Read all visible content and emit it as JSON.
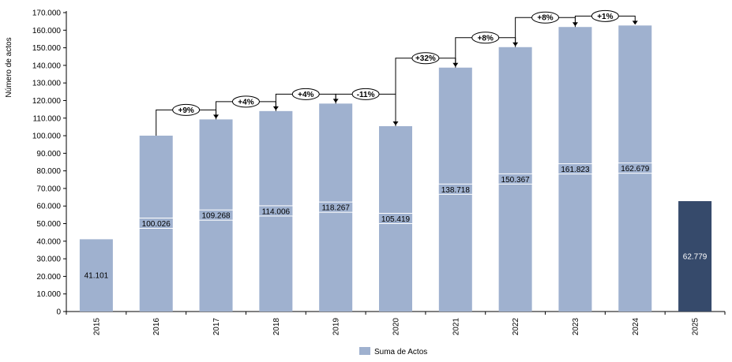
{
  "chart_data": {
    "type": "bar",
    "categories": [
      "2015",
      "2016",
      "2017",
      "2018",
      "2019",
      "2020",
      "2021",
      "2022",
      "2023",
      "2024",
      "2025"
    ],
    "series": [
      {
        "name": "Suma de Actos",
        "values": [
          41101,
          100026,
          109268,
          114006,
          118267,
          105419,
          138718,
          150367,
          161823,
          162679,
          62779
        ]
      }
    ],
    "data_labels": [
      "41.101",
      "100.026",
      "109.268",
      "114.006",
      "118.267",
      "105.419",
      "138.718",
      "150.367",
      "161.823",
      "162.679",
      "62.779"
    ],
    "ylabel": "Número de actos",
    "xlabel": "",
    "ylim": [
      0,
      170000
    ],
    "yticks": [
      {
        "value": 0,
        "label": "0"
      },
      {
        "value": 10000,
        "label": "10.000"
      },
      {
        "value": 20000,
        "label": "20.000"
      },
      {
        "value": 30000,
        "label": "30.000"
      },
      {
        "value": 40000,
        "label": "40.000"
      },
      {
        "value": 50000,
        "label": "50.000"
      },
      {
        "value": 60000,
        "label": "60.000"
      },
      {
        "value": 70000,
        "label": "70.000"
      },
      {
        "value": 80000,
        "label": "80.000"
      },
      {
        "value": 90000,
        "label": "90.000"
      },
      {
        "value": 100000,
        "label": "100.000"
      },
      {
        "value": 110000,
        "label": "110.000"
      },
      {
        "value": 120000,
        "label": "120.000"
      },
      {
        "value": 130000,
        "label": "130.000"
      },
      {
        "value": 140000,
        "label": "140.000"
      },
      {
        "value": 150000,
        "label": "150.000"
      },
      {
        "value": 160000,
        "label": "160.000"
      },
      {
        "value": 170000,
        "label": "170.000"
      }
    ],
    "growth_annotations": [
      {
        "from": "2016",
        "to": "2017",
        "label": "+9%"
      },
      {
        "from": "2017",
        "to": "2018",
        "label": "+4%"
      },
      {
        "from": "2018",
        "to": "2019",
        "label": "+4%"
      },
      {
        "from": "2019",
        "to": "2020",
        "label": "-11%"
      },
      {
        "from": "2020",
        "to": "2021",
        "label": "+32%"
      },
      {
        "from": "2021",
        "to": "2022",
        "label": "+8%"
      },
      {
        "from": "2022",
        "to": "2023",
        "label": "+8%"
      },
      {
        "from": "2023",
        "to": "2024",
        "label": "+1%"
      }
    ],
    "highlight_category": "2025",
    "colors": {
      "bar": "#9fb1cf",
      "highlight": "#364a6b"
    },
    "grid": false,
    "legend_position": "bottom-center"
  }
}
